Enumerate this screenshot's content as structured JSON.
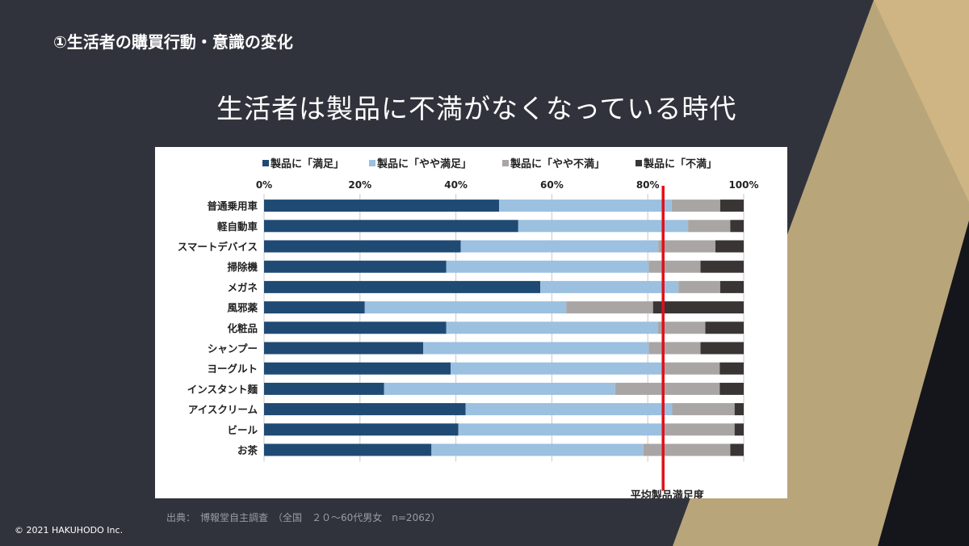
{
  "section_title": "①生活者の購買行動・意識の変化",
  "slide_title": "生活者は製品に不満がなくなっている時代",
  "source": "出典：　博報堂自主調査　（全国　２０～60代男女　n=2062）",
  "copyright": "© 2021 HAKUHODO Inc.",
  "colors": {
    "satisfied": "#1f4a73",
    "somewhat_satisfied": "#9bc0e0",
    "somewhat_dissatisfied": "#aaa5a5",
    "dissatisfied": "#3a3535",
    "avg_line": "#e0101a"
  },
  "chart_data": {
    "type": "bar",
    "orientation": "horizontal-stacked-100",
    "categories": [
      "普通乗用車",
      "軽自動車",
      "スマートデバイス",
      "掃除機",
      "メガネ",
      "風邪薬",
      "化粧品",
      "シャンプー",
      "ヨーグルト",
      "インスタント麺",
      "アイスクリーム",
      "ビール",
      "お茶"
    ],
    "series": [
      {
        "name": "製品に「満足」",
        "values": [
          49,
          53,
          41,
          38,
          57.6,
          21,
          38,
          33.2,
          38.9,
          25,
          42,
          40.5,
          34.9
        ]
      },
      {
        "name": "製品に「やや満足」",
        "values": [
          36,
          35.4,
          41.2,
          42.2,
          28.8,
          42,
          44.1,
          47,
          44,
          48.2,
          43.1,
          42.4,
          44.2
        ]
      },
      {
        "name": "製品に「やや不満」",
        "values": [
          10.1,
          8.8,
          11.9,
          10.8,
          8.7,
          18.1,
          9.9,
          10.8,
          12.1,
          21.8,
          13,
          15.2,
          18.1
        ]
      },
      {
        "name": "製品に「不満」",
        "values": [
          4.9,
          2.8,
          5.9,
          9,
          4.9,
          18.9,
          8,
          9,
          5,
          5,
          1.9,
          1.9,
          2.8
        ]
      }
    ],
    "xticks": [
      "0%",
      "20%",
      "40%",
      "60%",
      "80%",
      "100%"
    ],
    "xlim": [
      0,
      100
    ],
    "grid": true,
    "legend_position": "top",
    "reference_line": {
      "label": "平均製品満足度",
      "value": 83.2
    }
  }
}
